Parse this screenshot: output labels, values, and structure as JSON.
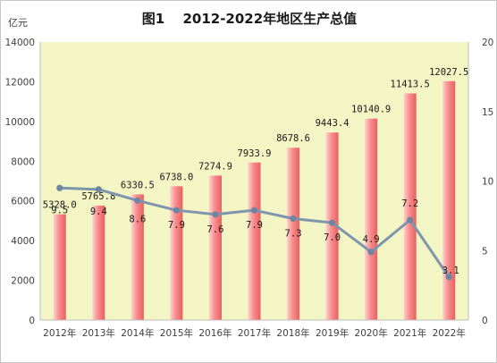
{
  "chart_data": {
    "type": "bar",
    "title": "图1　 2012-2022年地区生产总值",
    "ylabel": "亿元",
    "categories": [
      "2012年",
      "2013年",
      "2014年",
      "2015年",
      "2016年",
      "2017年",
      "2018年",
      "2019年",
      "2020年",
      "2021年",
      "2022年"
    ],
    "series": [
      {
        "type": "bar",
        "axis": "left",
        "values": [
          5328.0,
          5765.8,
          6330.5,
          6738.0,
          7274.9,
          7933.9,
          8678.6,
          9443.4,
          10140.9,
          11413.5,
          12027.5
        ],
        "labels": [
          "5328.0",
          "5765.8",
          "6330.5",
          "6738.0",
          "7274.9",
          "7933.9",
          "8678.6",
          "9443.4",
          "10140.9",
          "11413.5",
          "12027.5"
        ]
      },
      {
        "type": "line",
        "axis": "right",
        "values": [
          9.5,
          9.4,
          8.6,
          7.9,
          7.6,
          7.9,
          7.3,
          7.0,
          4.9,
          7.2,
          3.1
        ],
        "labels": [
          "9.5",
          "9.4",
          "8.6",
          "7.9",
          "7.6",
          "7.9",
          "7.3",
          "7.0",
          "4.9",
          "7.2",
          "3.1"
        ]
      }
    ],
    "ylim": [
      0,
      14000
    ],
    "yticks": [
      "0",
      "2000",
      "4000",
      "6000",
      "8000",
      "10000",
      "12000",
      "14000"
    ],
    "y2lim": [
      0,
      20
    ],
    "y2ticks": [
      "0",
      "5",
      "10",
      "15",
      "20"
    ],
    "grid": false,
    "legend": "none",
    "colors": {
      "plot_background": "#f3f5c4",
      "bar_light": "#ffd0d0",
      "bar_dark": "#f06868",
      "line": "#7f95ad",
      "marker": "#6f86a0"
    }
  }
}
